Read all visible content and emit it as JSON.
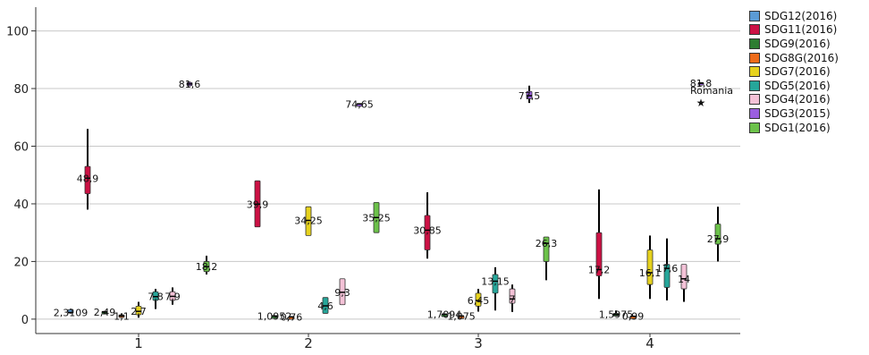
{
  "chart_data": {
    "type": "boxplot",
    "categories": [
      "1",
      "2",
      "3",
      "4"
    ],
    "ylim": [
      -5,
      107
    ],
    "y_ticks": [
      0,
      20,
      40,
      60,
      80,
      100
    ],
    "grid": "horizontal",
    "legend_position": "right",
    "series": [
      {
        "name": "SDG12(2016)",
        "color": "#5b9bd5",
        "boxes": [
          {
            "cat": "1",
            "min": 1.9,
            "q1": 2.1,
            "median": 2.3109,
            "q3": 3.3,
            "max": 3.6,
            "label": "2,3109"
          },
          null,
          null,
          null
        ]
      },
      {
        "name": "SDG11(2016)",
        "color": "#cc1144",
        "boxes": [
          {
            "cat": "1",
            "min": 38,
            "q1": 43.5,
            "median": 48.9,
            "q3": 53,
            "max": 66,
            "label": "48,9"
          },
          {
            "cat": "2",
            "min": 32,
            "q1": 32,
            "median": 39.9,
            "q3": 48,
            "max": 48,
            "label": "39,9"
          },
          {
            "cat": "3",
            "min": 21,
            "q1": 24,
            "median": 30.85,
            "q3": 36,
            "max": 44,
            "label": "30,85"
          },
          {
            "cat": "4",
            "min": 7,
            "q1": 15,
            "median": 17.2,
            "q3": 30,
            "max": 45,
            "label": "17,2"
          }
        ]
      },
      {
        "name": "SDG9(2016)",
        "color": "#2e7d32",
        "boxes": [
          {
            "cat": "1",
            "min": 2.2,
            "q1": 2.3,
            "median": 2.49,
            "q3": 2.7,
            "max": 2.8,
            "label": "2,49"
          },
          {
            "cat": "2",
            "min": 0.9,
            "q1": 1.0,
            "median": 1.0952,
            "q3": 1.2,
            "max": 1.3,
            "label": "1,0952"
          },
          {
            "cat": "3",
            "min": 1.5,
            "q1": 1.6,
            "median": 1.7094,
            "q3": 1.8,
            "max": 1.9,
            "label": "1,7094"
          },
          {
            "cat": "4",
            "min": 1.3,
            "q1": 1.5,
            "median": 1.5975,
            "q3": 2.0,
            "max": 3.0,
            "label": "1,5975"
          }
        ]
      },
      {
        "name": "SDG8G(2016)",
        "color": "#ef6c1a",
        "boxes": [
          {
            "cat": "1",
            "min": 0.4,
            "q1": 0.6,
            "median": 1.1,
            "q3": 1.5,
            "max": 2.0,
            "label": "1,1"
          },
          {
            "cat": "2",
            "min": 0.5,
            "q1": 0.6,
            "median": 0.76,
            "q3": 0.9,
            "max": 1.0,
            "label": "0,76"
          },
          {
            "cat": "3",
            "min": 0.9,
            "q1": 1.0,
            "median": 1.075,
            "q3": 1.15,
            "max": 1.25,
            "label": "1,075"
          },
          {
            "cat": "4",
            "min": 0.8,
            "q1": 0.9,
            "median": 0.99,
            "q3": 1.1,
            "max": 1.2,
            "label": "0,99"
          }
        ]
      },
      {
        "name": "SDG7(2016)",
        "color": "#e6d21e",
        "boxes": [
          {
            "cat": "1",
            "min": 0.5,
            "q1": 1.5,
            "median": 2.7,
            "q3": 4.5,
            "max": 6.0,
            "label": "2,7"
          },
          {
            "cat": "2",
            "min": 29,
            "q1": 29,
            "median": 34.25,
            "q3": 39,
            "max": 39,
            "label": "34,25"
          },
          {
            "cat": "3",
            "min": 2.6,
            "q1": 4.5,
            "median": 6.45,
            "q3": 9,
            "max": 10.5,
            "label": "6,45"
          },
          {
            "cat": "4",
            "min": 7,
            "q1": 12,
            "median": 16.1,
            "q3": 24,
            "max": 29,
            "label": "16,1"
          }
        ]
      },
      {
        "name": "SDG5(2016)",
        "color": "#26a69a",
        "boxes": [
          {
            "cat": "1",
            "min": 3.5,
            "q1": 6.5,
            "median": 7.8,
            "q3": 9.5,
            "max": 10.5,
            "label": "7,8"
          },
          {
            "cat": "2",
            "min": 2,
            "q1": 2,
            "median": 4.6,
            "q3": 7.5,
            "max": 7.5,
            "label": "4,6"
          },
          {
            "cat": "3",
            "min": 3,
            "q1": 9,
            "median": 13.15,
            "q3": 15.5,
            "max": 18,
            "label": "13,15"
          },
          {
            "cat": "4",
            "min": 6.5,
            "q1": 11,
            "median": 17.6,
            "q3": 19,
            "max": 28,
            "label": "17,6"
          }
        ]
      },
      {
        "name": "SDG4(2016)",
        "color": "#f4c2d7",
        "boxes": [
          {
            "cat": "1",
            "min": 5,
            "q1": 6.5,
            "median": 7.9,
            "q3": 9.5,
            "max": 11,
            "label": "7,9"
          },
          {
            "cat": "2",
            "min": 5,
            "q1": 5,
            "median": 9.3,
            "q3": 14,
            "max": 14,
            "label": "9,3"
          },
          {
            "cat": "3",
            "min": 2.5,
            "q1": 5.5,
            "median": 7,
            "q3": 10.5,
            "max": 12,
            "label": "7"
          },
          {
            "cat": "4",
            "min": 6,
            "q1": 10.5,
            "median": 14,
            "q3": 19,
            "max": 19,
            "label": "14"
          }
        ]
      },
      {
        "name": "SDG3(2015)",
        "color": "#9b5fe0",
        "boxes": [
          {
            "cat": "1",
            "min": 80.8,
            "q1": 81.0,
            "median": 81.6,
            "q3": 82.1,
            "max": 82.4,
            "label": "81,6"
          },
          {
            "cat": "2",
            "min": 74.4,
            "q1": 74.5,
            "median": 74.65,
            "q3": 74.8,
            "max": 74.9,
            "label": "74,65"
          },
          {
            "cat": "3",
            "min": 75,
            "q1": 76.5,
            "median": 77.5,
            "q3": 79,
            "max": 81,
            "label": "77,5"
          },
          {
            "cat": "4",
            "min": 81.4,
            "q1": 81.5,
            "median": 81.8,
            "q3": 82.1,
            "max": 82.2,
            "label": "81,8"
          }
        ]
      },
      {
        "name": "SDG1(2016)",
        "color": "#6cc24a",
        "boxes": [
          {
            "cat": "1",
            "min": 15.5,
            "q1": 16.5,
            "median": 18.2,
            "q3": 20,
            "max": 22,
            "label": "18,2"
          },
          {
            "cat": "2",
            "min": 30,
            "q1": 30,
            "median": 35.25,
            "q3": 40.5,
            "max": 40.5,
            "label": "35,25"
          },
          {
            "cat": "3",
            "min": 13.5,
            "q1": 20,
            "median": 26.3,
            "q3": 28.5,
            "max": 28.5,
            "label": "26,3"
          },
          {
            "cat": "4",
            "min": 20,
            "q1": 26,
            "median": 27.9,
            "q3": 33,
            "max": 39,
            "label": "27,9"
          }
        ]
      }
    ],
    "outliers": [
      {
        "series": "SDG3(2015)",
        "cat": "4",
        "value": 75,
        "label": "Romania",
        "marker": "★"
      }
    ]
  }
}
